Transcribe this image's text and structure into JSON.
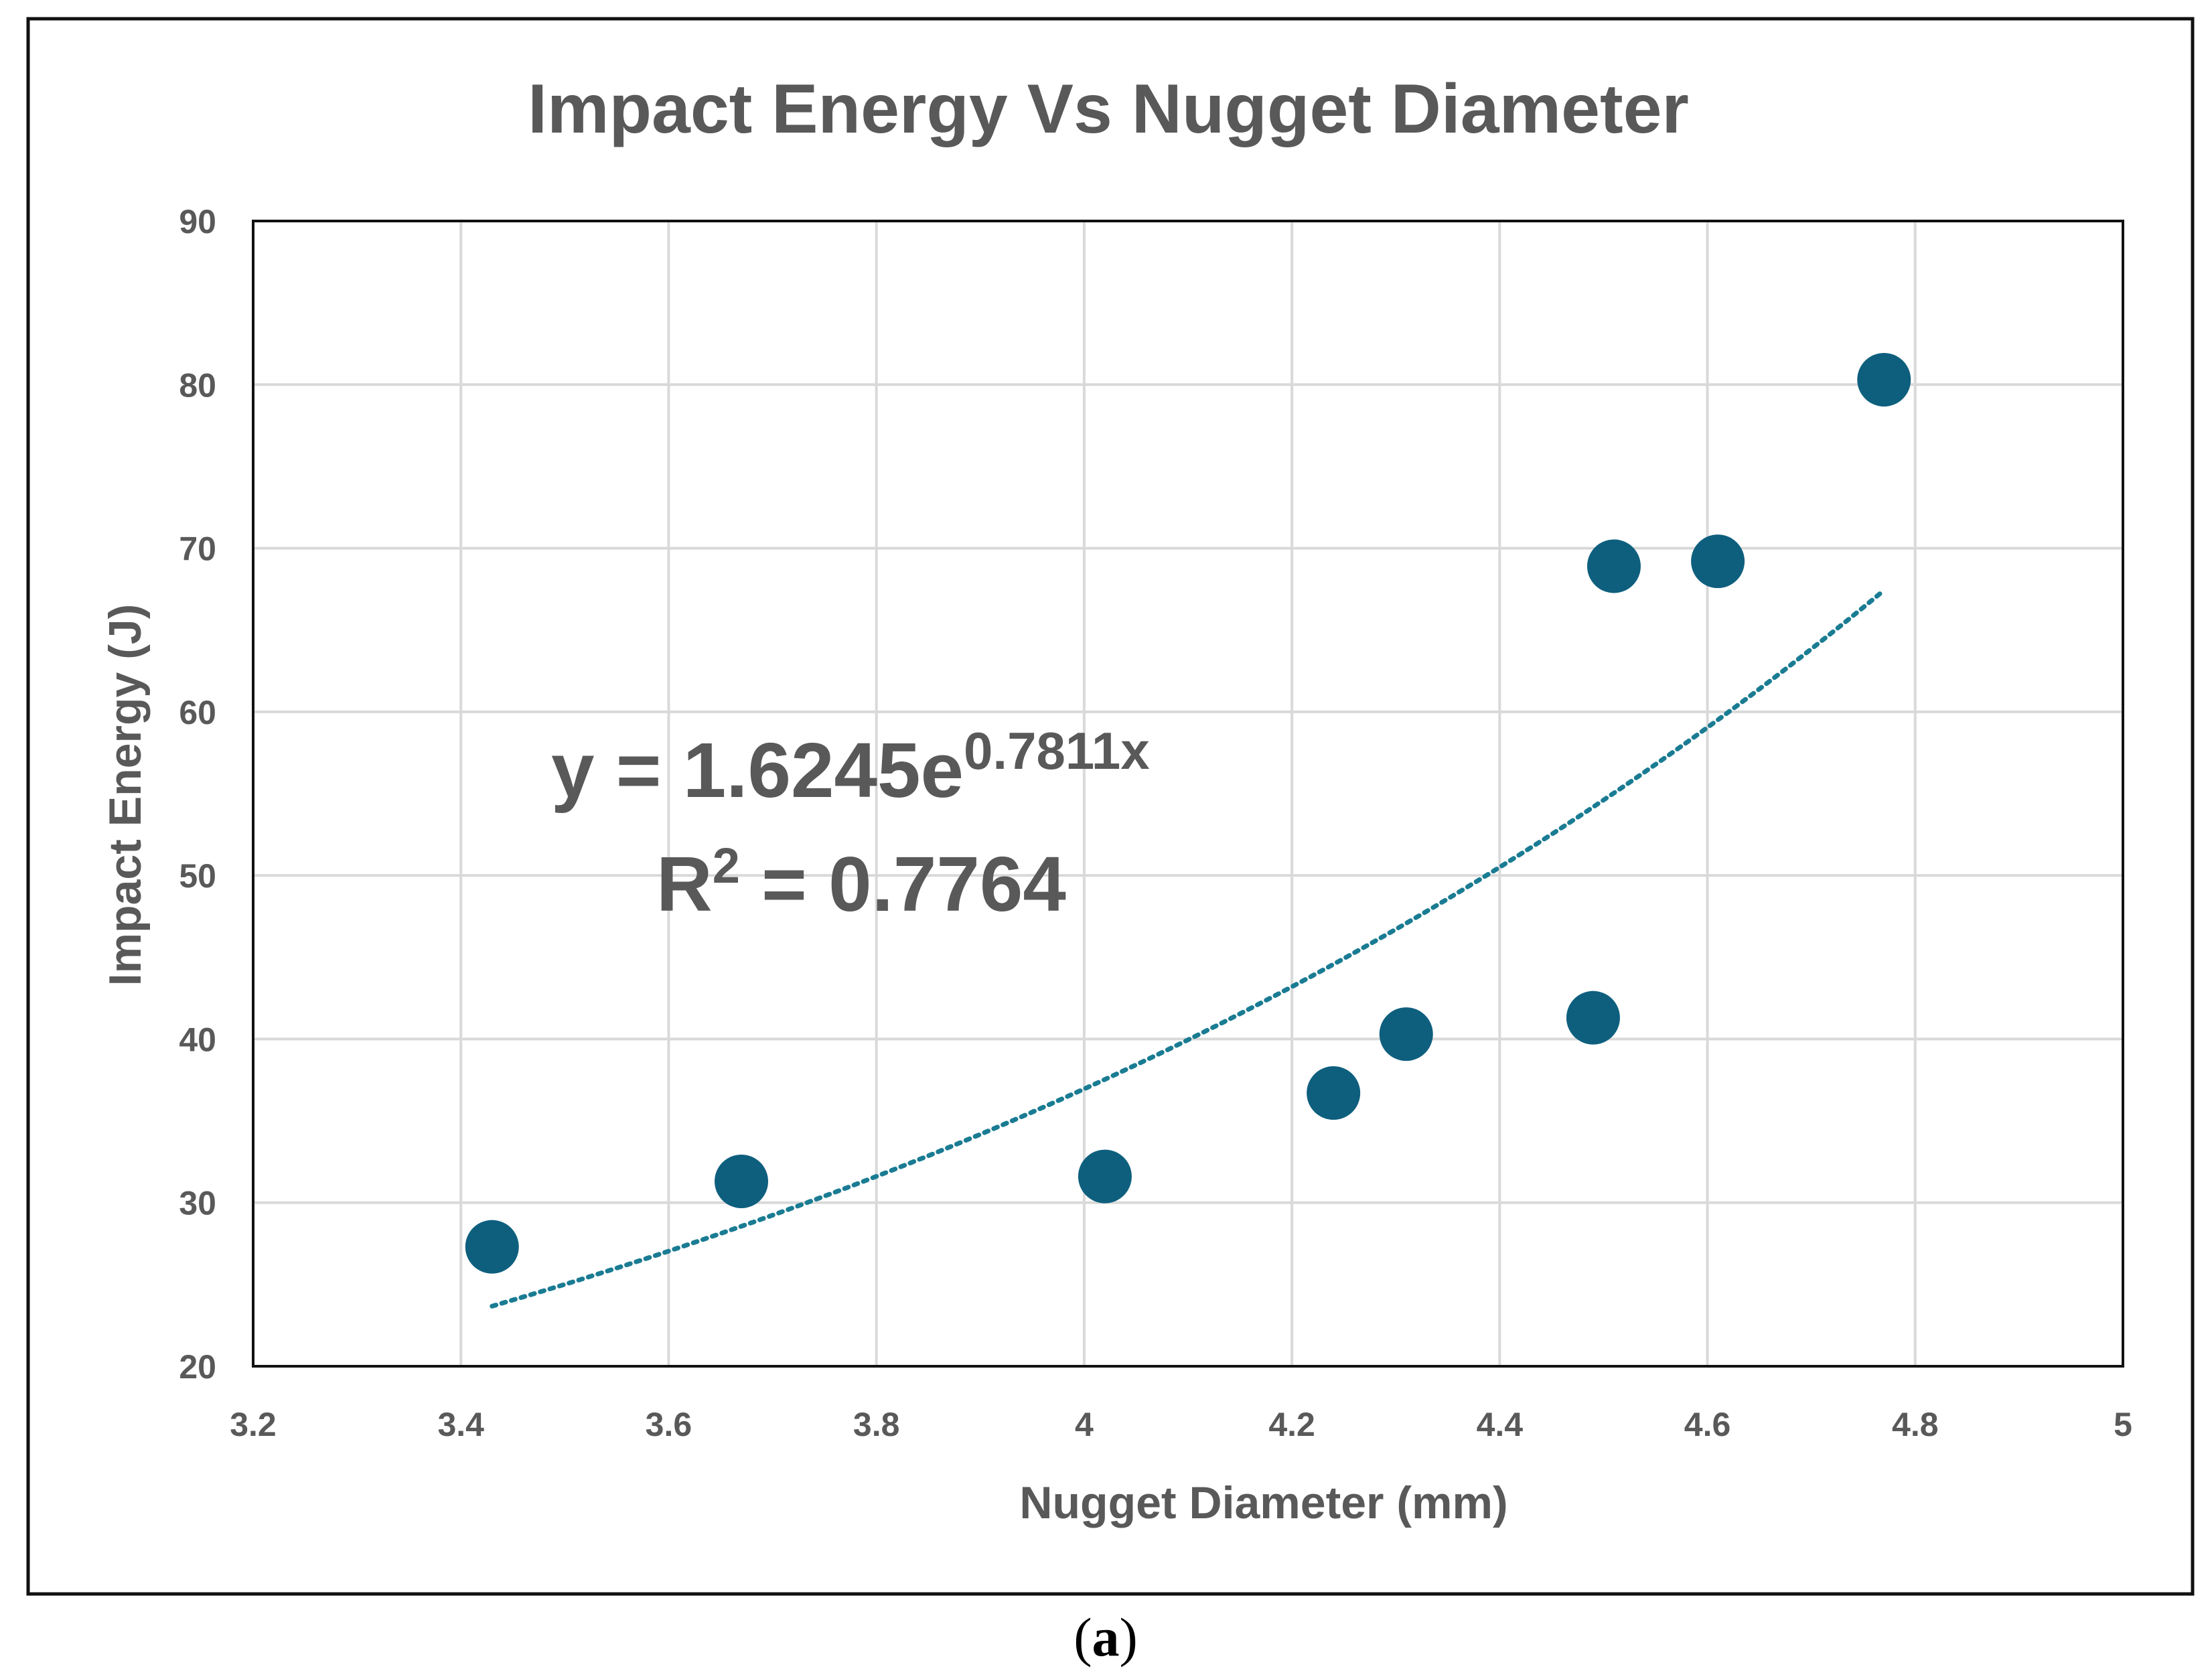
{
  "chart_data": {
    "type": "scatter",
    "title": "Impact Energy Vs Nugget Diameter",
    "xlabel": "Nugget Diameter (mm)",
    "ylabel": "Impact Energy (J)",
    "xlim": [
      3.2,
      5
    ],
    "ylim": [
      20,
      90
    ],
    "xticks": [
      3.2,
      3.4,
      3.6,
      3.8,
      4,
      4.2,
      4.4,
      4.6,
      4.8,
      5
    ],
    "xtick_labels": [
      "3.2",
      "3.4",
      "3.6",
      "3.8",
      "4",
      "4.2",
      "4.4",
      "4.6",
      "4.8",
      "5"
    ],
    "yticks": [
      20,
      30,
      40,
      50,
      60,
      70,
      80,
      90
    ],
    "ytick_labels": [
      "20",
      "30",
      "40",
      "50",
      "60",
      "70",
      "80",
      "90"
    ],
    "grid": true,
    "series": [
      {
        "name": "Impact Energy",
        "x": [
          3.43,
          3.67,
          4.02,
          4.24,
          4.31,
          4.49,
          4.51,
          4.61,
          4.77
        ],
        "y": [
          27.3,
          31.3,
          31.6,
          36.7,
          40.3,
          41.3,
          68.9,
          69.2,
          80.3
        ],
        "color": "#0e5f7e"
      }
    ],
    "trendline": {
      "type": "exponential",
      "a": 1.6245,
      "b": 0.7811,
      "x_range": [
        3.43,
        4.77
      ],
      "style": "dotted",
      "color": "#1a7c93",
      "equation_main": "y = 1.6245e",
      "equation_exponent": "0.7811x",
      "r2_main": "R",
      "r2_sup": "2",
      "r2_value": " = 0.7764"
    }
  },
  "caption": {
    "open": "(",
    "letter": "a",
    "close": ")"
  }
}
